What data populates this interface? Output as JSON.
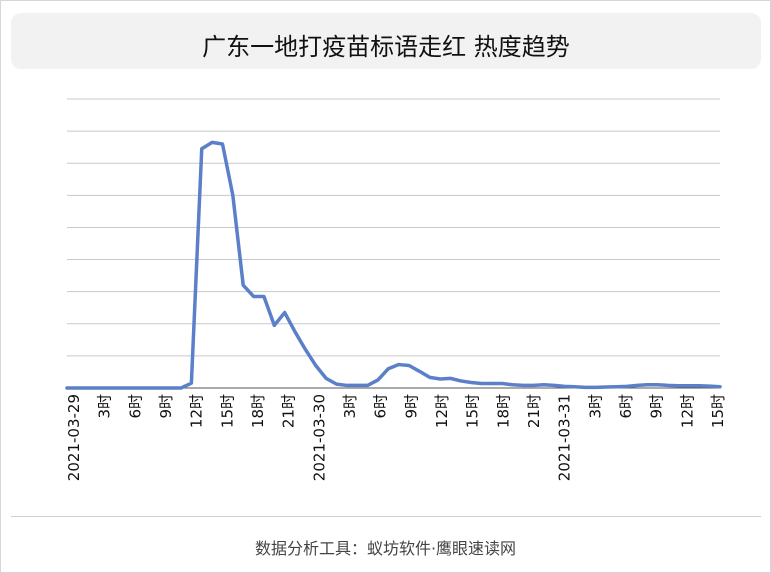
{
  "title": "广东一地打疫苗标语走红 热度趋势",
  "footer": "数据分析工具：蚁坊软件·鹰眼速读网",
  "colors": {
    "line": "#5b7fc9",
    "grid": "#c8c8c8",
    "axis": "#555555"
  },
  "chart_data": {
    "type": "line",
    "title": "广东一地打疫苗标语走红 热度趋势",
    "xlabel": "",
    "ylabel": "",
    "ylim": [
      0,
      9
    ],
    "grid": true,
    "legend": "none",
    "tick_labels": [
      "2021-03-29",
      "3时",
      "6时",
      "9时",
      "12时",
      "15时",
      "18时",
      "21时",
      "2021-03-30",
      "3时",
      "6时",
      "9时",
      "12时",
      "15时",
      "18时",
      "21时",
      "2021-03-31",
      "3时",
      "6时",
      "9时",
      "12时",
      "15时"
    ],
    "series": [
      {
        "values": [
          0,
          0,
          0,
          0,
          0,
          0,
          0,
          0,
          0,
          0,
          0,
          0,
          0.15,
          7.45,
          7.65,
          7.6,
          6,
          3.2,
          2.85,
          2.85,
          1.95,
          2.35,
          1.75,
          1.2,
          0.7,
          0.3,
          0.12,
          0.08,
          0.08,
          0.08,
          0.25,
          0.6,
          0.73,
          0.7,
          0.52,
          0.33,
          0.28,
          0.3,
          0.22,
          0.17,
          0.14,
          0.14,
          0.14,
          0.1,
          0.08,
          0.08,
          0.1,
          0.08,
          0.05,
          0.04,
          0.02,
          0.02,
          0.03,
          0.04,
          0.05,
          0.08,
          0.1,
          0.1,
          0.08,
          0.07,
          0.07,
          0.07,
          0.06,
          0.04
        ]
      }
    ]
  }
}
